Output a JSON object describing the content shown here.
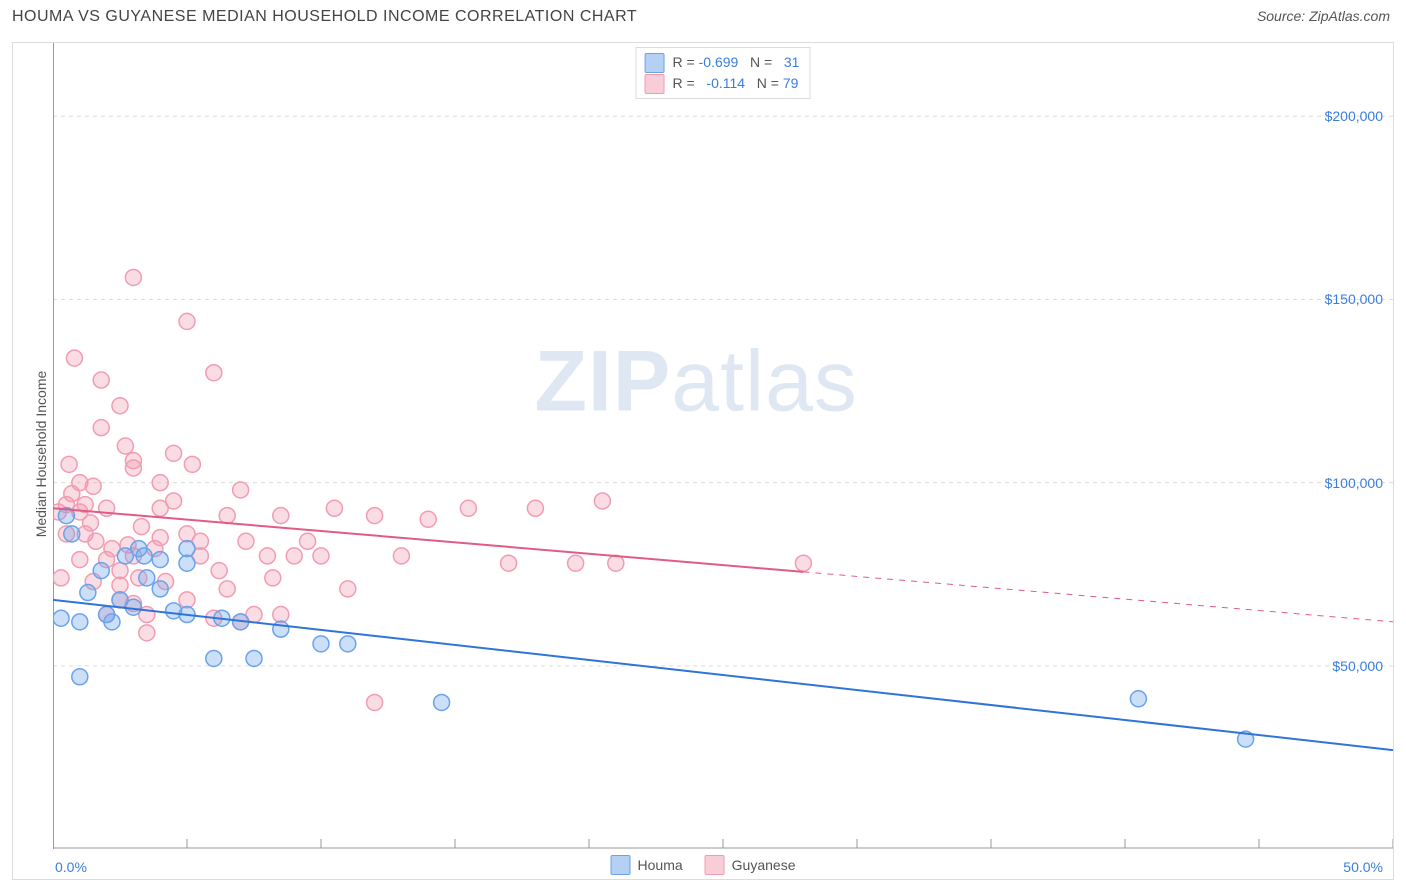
{
  "title": "HOUMA VS GUYANESE MEDIAN HOUSEHOLD INCOME CORRELATION CHART",
  "source": "Source: ZipAtlas.com",
  "watermark_zip": "ZIP",
  "watermark_atlas": "atlas",
  "chart": {
    "type": "scatter",
    "y_axis_label": "Median Household Income",
    "x_min_label": "0.0%",
    "x_max_label": "50.0%",
    "xlim": [
      0,
      50
    ],
    "ylim": [
      0,
      220000
    ],
    "y_ticks": [
      50000,
      100000,
      150000,
      200000
    ],
    "y_tick_labels": [
      "$50,000",
      "$100,000",
      "$150,000",
      "$200,000"
    ],
    "x_ticks_minor": [
      0,
      5,
      10,
      15,
      20,
      25,
      30,
      35,
      40,
      45,
      50
    ],
    "grid_color": "#dcdcdc",
    "axis_color": "#999999",
    "background_color": "#ffffff",
    "label_color": "#3a7de0",
    "text_color": "#555555",
    "marker_radius": 8,
    "marker_stroke_width": 1.5,
    "marker_fill_opacity": 0.35,
    "trend_line_width": 2,
    "series": {
      "houma": {
        "name": "Houma",
        "color": "#6aa3ea",
        "trend_color": "#2f74d8",
        "trend": {
          "x0": 0,
          "y0": 68000,
          "x1": 50,
          "y1": 27000,
          "solid_until_x": 50
        },
        "r_label": "R = ",
        "r_value": "-0.699",
        "n_label": "N = ",
        "n_value": "31",
        "points": [
          [
            0.3,
            63000
          ],
          [
            0.5,
            91000
          ],
          [
            0.7,
            86000
          ],
          [
            1.0,
            47000
          ],
          [
            1.0,
            62000
          ],
          [
            1.3,
            70000
          ],
          [
            1.8,
            76000
          ],
          [
            2.0,
            64000
          ],
          [
            2.2,
            62000
          ],
          [
            2.5,
            68000
          ],
          [
            2.7,
            80000
          ],
          [
            3.0,
            66000
          ],
          [
            3.2,
            82000
          ],
          [
            3.4,
            80000
          ],
          [
            3.5,
            74000
          ],
          [
            4.0,
            71000
          ],
          [
            4.0,
            79000
          ],
          [
            4.5,
            65000
          ],
          [
            5.0,
            78000
          ],
          [
            5.0,
            82000
          ],
          [
            5.0,
            64000
          ],
          [
            6.0,
            52000
          ],
          [
            6.3,
            63000
          ],
          [
            7.0,
            62000
          ],
          [
            7.5,
            52000
          ],
          [
            8.5,
            60000
          ],
          [
            10.0,
            56000
          ],
          [
            11.0,
            56000
          ],
          [
            14.5,
            40000
          ],
          [
            40.5,
            41000
          ],
          [
            44.5,
            30000
          ]
        ]
      },
      "guyanese": {
        "name": "Guyanese",
        "color": "#f29cb1",
        "trend_color": "#e05b85",
        "trend": {
          "x0": 0,
          "y0": 93000,
          "x1": 50,
          "y1": 62000,
          "solid_until_x": 28
        },
        "r_label": "R = ",
        "r_value": "-0.114",
        "n_label": "N = ",
        "n_value": "79",
        "points": [
          [
            0.2,
            92000
          ],
          [
            0.3,
            74000
          ],
          [
            0.5,
            94000
          ],
          [
            0.5,
            86000
          ],
          [
            0.6,
            105000
          ],
          [
            0.7,
            97000
          ],
          [
            0.8,
            134000
          ],
          [
            1.0,
            92000
          ],
          [
            1.0,
            100000
          ],
          [
            1.0,
            79000
          ],
          [
            1.2,
            94000
          ],
          [
            1.2,
            86000
          ],
          [
            1.4,
            89000
          ],
          [
            1.5,
            99000
          ],
          [
            1.5,
            73000
          ],
          [
            1.6,
            84000
          ],
          [
            1.8,
            128000
          ],
          [
            1.8,
            115000
          ],
          [
            2.0,
            93000
          ],
          [
            2.0,
            79000
          ],
          [
            2.0,
            64000
          ],
          [
            2.2,
            82000
          ],
          [
            2.5,
            121000
          ],
          [
            2.5,
            68000
          ],
          [
            2.5,
            72000
          ],
          [
            2.5,
            76000
          ],
          [
            2.7,
            110000
          ],
          [
            2.8,
            83000
          ],
          [
            3.0,
            156000
          ],
          [
            3.0,
            106000
          ],
          [
            3.0,
            104000
          ],
          [
            3.0,
            80000
          ],
          [
            3.0,
            67000
          ],
          [
            3.2,
            74000
          ],
          [
            3.3,
            88000
          ],
          [
            3.5,
            64000
          ],
          [
            3.5,
            59000
          ],
          [
            3.8,
            82000
          ],
          [
            4.0,
            100000
          ],
          [
            4.0,
            93000
          ],
          [
            4.0,
            85000
          ],
          [
            4.2,
            73000
          ],
          [
            4.5,
            108000
          ],
          [
            4.5,
            95000
          ],
          [
            5.0,
            144000
          ],
          [
            5.0,
            86000
          ],
          [
            5.0,
            68000
          ],
          [
            5.2,
            105000
          ],
          [
            5.5,
            84000
          ],
          [
            5.5,
            80000
          ],
          [
            6.0,
            130000
          ],
          [
            6.0,
            63000
          ],
          [
            6.2,
            76000
          ],
          [
            6.5,
            71000
          ],
          [
            6.5,
            91000
          ],
          [
            7.0,
            62000
          ],
          [
            7.0,
            98000
          ],
          [
            7.2,
            84000
          ],
          [
            7.5,
            64000
          ],
          [
            8.0,
            80000
          ],
          [
            8.2,
            74000
          ],
          [
            8.5,
            91000
          ],
          [
            8.5,
            64000
          ],
          [
            9.0,
            80000
          ],
          [
            9.5,
            84000
          ],
          [
            10.0,
            80000
          ],
          [
            10.5,
            93000
          ],
          [
            11.0,
            71000
          ],
          [
            12.0,
            40000
          ],
          [
            12.0,
            91000
          ],
          [
            13.0,
            80000
          ],
          [
            14.0,
            90000
          ],
          [
            15.5,
            93000
          ],
          [
            17.0,
            78000
          ],
          [
            18.0,
            93000
          ],
          [
            19.5,
            78000
          ],
          [
            20.5,
            95000
          ],
          [
            21.0,
            78000
          ],
          [
            28.0,
            78000
          ]
        ]
      }
    }
  }
}
